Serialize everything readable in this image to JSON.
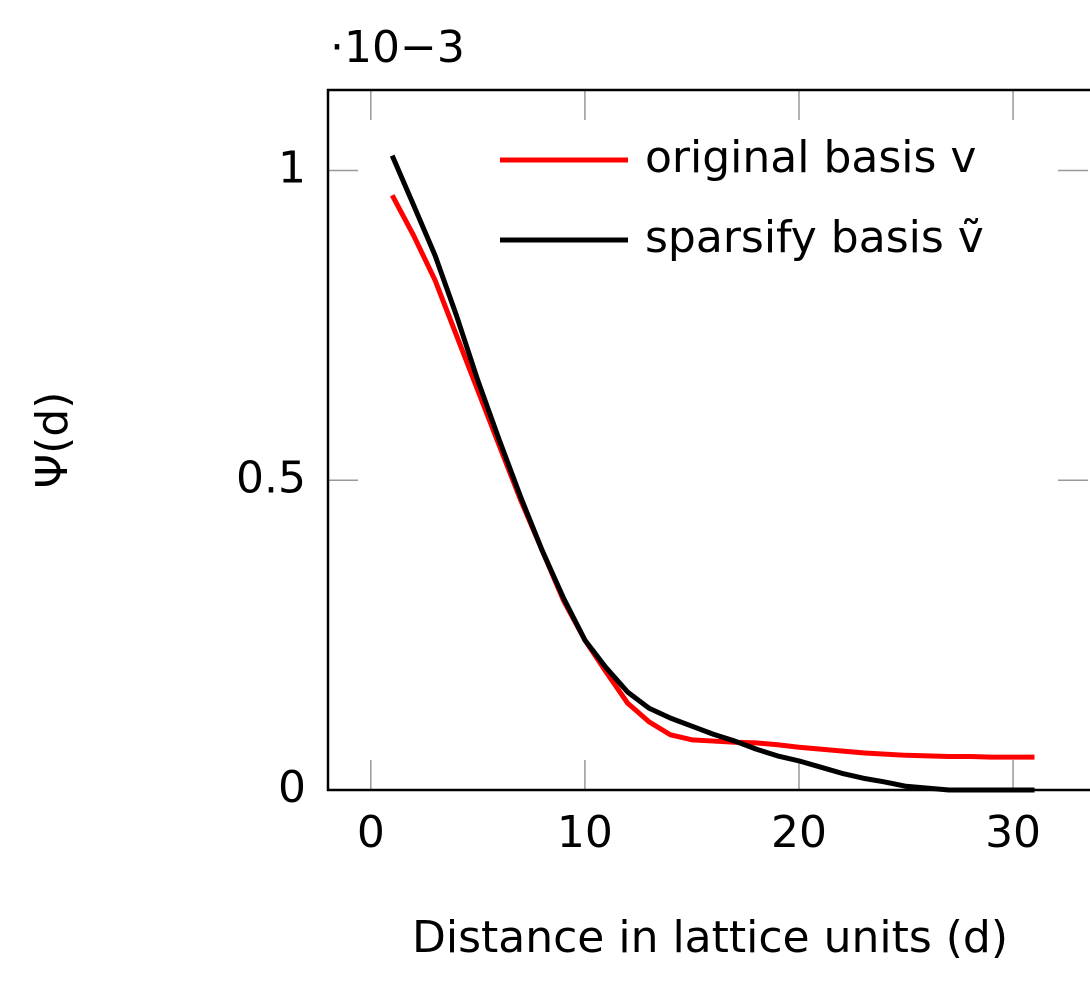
{
  "chart_data": {
    "type": "line",
    "x_label": "Distance in lattice units (d)",
    "y_label": "Ψ(d)",
    "y_scale_label": "·10−3",
    "x": [
      1,
      2,
      3,
      4,
      5,
      6,
      7,
      8,
      9,
      10,
      11,
      12,
      13,
      14,
      15,
      16,
      17,
      18,
      19,
      20,
      21,
      22,
      23,
      24,
      25,
      26,
      27,
      28,
      29,
      30,
      31
    ],
    "series": [
      {
        "name": "original basis v",
        "color": "#ff0000",
        "values": [
          0.96,
          0.895,
          0.823,
          0.734,
          0.645,
          0.556,
          0.468,
          0.387,
          0.306,
          0.242,
          0.19,
          0.14,
          0.11,
          0.089,
          0.081,
          0.079,
          0.077,
          0.076,
          0.073,
          0.069,
          0.066,
          0.063,
          0.06,
          0.058,
          0.056,
          0.055,
          0.054,
          0.054,
          0.053,
          0.053,
          0.053
        ]
      },
      {
        "name": "sparsify basis ṽ",
        "color": "#000000",
        "values": [
          1.024,
          0.944,
          0.863,
          0.766,
          0.661,
          0.565,
          0.473,
          0.387,
          0.31,
          0.242,
          0.197,
          0.158,
          0.132,
          0.116,
          0.103,
          0.09,
          0.079,
          0.066,
          0.055,
          0.047,
          0.037,
          0.027,
          0.019,
          0.013,
          0.006,
          0.003,
          0,
          0,
          0,
          0,
          0
        ]
      }
    ],
    "xlim": [
      -2,
      33.5
    ],
    "xticks": [
      0,
      10,
      20,
      30
    ],
    "ylim": [
      0,
      1.13
    ],
    "yticks": [
      0,
      0.5,
      1
    ],
    "legend": "top-right"
  }
}
